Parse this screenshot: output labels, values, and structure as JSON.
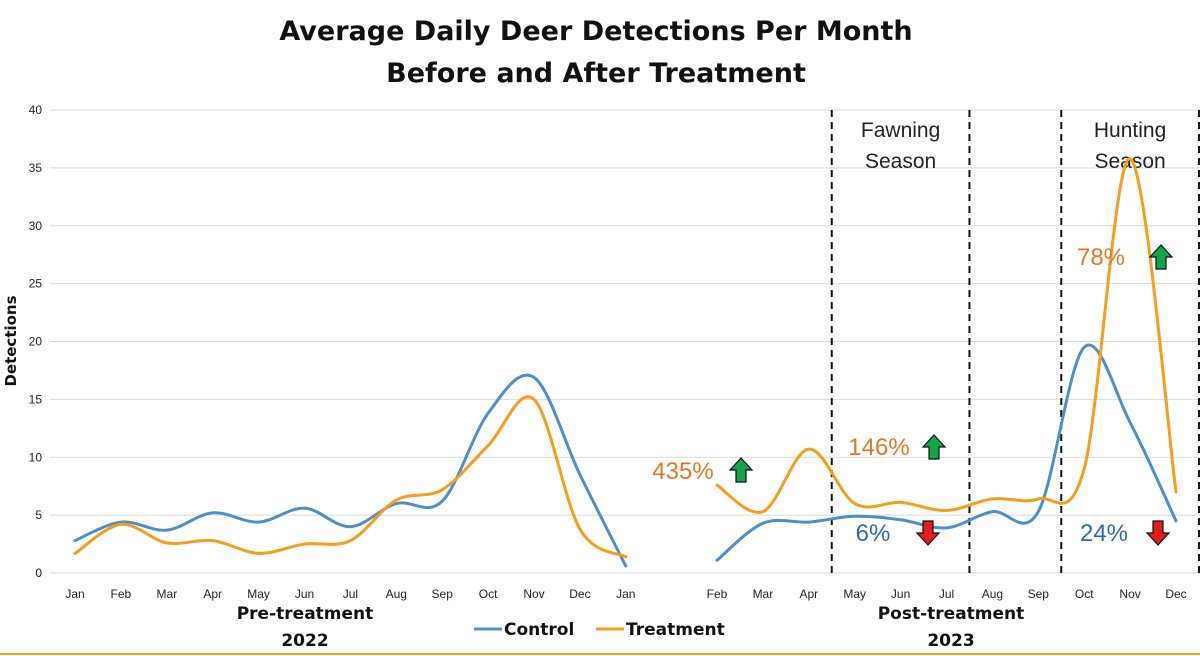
{
  "chart_data": {
    "type": "line",
    "title": "Average Daily Deer Detections Per Month",
    "subtitle": "Before and After Treatment",
    "ylabel": "Detections",
    "ylim": [
      0,
      40
    ],
    "yticks": [
      0,
      5,
      10,
      15,
      20,
      25,
      30,
      35,
      40
    ],
    "grid": true,
    "legend": "bottom-center",
    "periods": [
      {
        "label": "Pre-treatment",
        "year": "2022",
        "months": [
          "Jan",
          "Feb",
          "Mar",
          "Apr",
          "May",
          "Jun",
          "Jul",
          "Aug",
          "Sep",
          "Oct",
          "Nov",
          "Dec",
          "Jan"
        ],
        "series": [
          {
            "name": "Control",
            "color": "#4f8ec9",
            "values": [
              2.8,
              4.4,
              3.7,
              5.2,
              4.4,
              5.6,
              4.0,
              6.0,
              6.2,
              13.8,
              16.9,
              8.5,
              0.6
            ]
          },
          {
            "name": "Treatment",
            "color": "#f59d1c",
            "values": [
              1.7,
              4.2,
              2.6,
              2.8,
              1.7,
              2.5,
              2.8,
              6.3,
              7.2,
              11.0,
              15.0,
              3.8,
              1.4
            ]
          }
        ]
      },
      {
        "label": "Post-treatment",
        "year": "2023",
        "months": [
          "Feb",
          "Mar",
          "Apr",
          "May",
          "Jun",
          "Jul",
          "Aug",
          "Sep",
          "Oct",
          "Nov",
          "Dec"
        ],
        "series": [
          {
            "name": "Control",
            "color": "#4f8ec9",
            "values": [
              1.1,
              4.3,
              4.4,
              4.9,
              4.6,
              3.9,
              5.3,
              5.3,
              19.5,
              13.0,
              4.5
            ]
          },
          {
            "name": "Treatment",
            "color": "#f59d1c",
            "values": [
              7.6,
              5.3,
              10.7,
              6.0,
              6.1,
              5.4,
              6.4,
              6.4,
              9.0,
              35.8,
              7.0
            ]
          }
        ]
      }
    ],
    "seasons": [
      {
        "label_line1": "Fawning",
        "label_line2": "Season",
        "from": "Apr",
        "to": "Jul"
      },
      {
        "label_line1": "Hunting",
        "label_line2": "Season",
        "from": "Sep",
        "to": "Dec"
      }
    ],
    "annotations": [
      {
        "text": "435%",
        "color": "#e07a2a",
        "arrow": "up",
        "near": "Feb"
      },
      {
        "text": "146%",
        "color": "#e07a2a",
        "arrow": "up",
        "near": "May"
      },
      {
        "text": "6%",
        "color": "#2f6ca8",
        "arrow": "down",
        "near": "May"
      },
      {
        "text": "78%",
        "color": "#e07a2a",
        "arrow": "up",
        "near": "Nov"
      },
      {
        "text": "24%",
        "color": "#2f6ca8",
        "arrow": "down",
        "near": "Oct"
      }
    ],
    "arrow_colors": {
      "up": "#16a34a",
      "down": "#e11d1d"
    }
  }
}
